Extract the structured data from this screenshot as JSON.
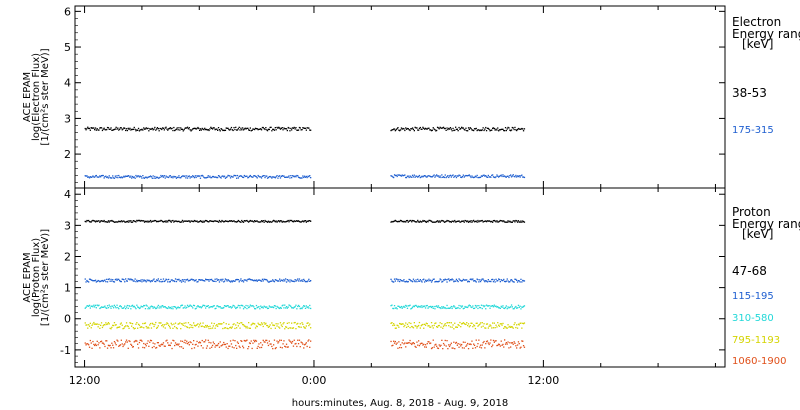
{
  "chart_data": [
    {
      "type": "scatter",
      "panel": "electron",
      "ylabel_lines": [
        "ACE EPAM",
        "log(Electron Flux)",
        "[1/(cm²s ster MeV)]"
      ],
      "yticks": [
        2,
        3,
        4,
        5,
        6
      ],
      "ylim": [
        1.05,
        6.15
      ],
      "legend_title": [
        "Electron",
        "Energy range",
        "[keV]"
      ],
      "series": [
        {
          "name": "38-53",
          "color": "#000000",
          "values_segment_1": 2.72,
          "values_segment_2": 2.72,
          "jitter": 0.05
        },
        {
          "name": "175-315",
          "color": "#1f5fd0",
          "values_segment_1": 1.38,
          "values_segment_2": 1.4,
          "jitter": 0.04
        }
      ]
    },
    {
      "type": "scatter",
      "panel": "proton",
      "ylabel_lines": [
        "ACE EPAM",
        "log(Proton Flux)",
        "[1/(cm²s ster MeV)]"
      ],
      "yticks": [
        -1,
        0,
        1,
        2,
        3,
        4
      ],
      "ylim": [
        -1.55,
        4.2
      ],
      "legend_title": [
        "Proton",
        "Energy range",
        "[keV]"
      ],
      "series": [
        {
          "name": "47-68",
          "color": "#000000",
          "values_segment_1": 3.15,
          "values_segment_2": 3.15,
          "jitter": 0.03
        },
        {
          "name": "115-195",
          "color": "#1f5fd0",
          "values_segment_1": 1.25,
          "values_segment_2": 1.25,
          "jitter": 0.05
        },
        {
          "name": "310-580",
          "color": "#22d8d8",
          "values_segment_1": 0.4,
          "values_segment_2": 0.4,
          "jitter": 0.06
        },
        {
          "name": "795-1193",
          "color": "#d4d400",
          "values_segment_1": -0.2,
          "values_segment_2": -0.2,
          "jitter": 0.1
        },
        {
          "name": "1060-1900",
          "color": "#e0501a",
          "values_segment_1": -0.8,
          "values_segment_2": -0.8,
          "jitter": 0.14
        }
      ]
    }
  ],
  "time_axis": {
    "range_hours": [
      11.5,
      45.5
    ],
    "data_segments_hours": [
      [
        12.0,
        23.8
      ],
      [
        28.0,
        35.0
      ]
    ],
    "major_tick_labels": [
      {
        "hour": 12,
        "label": "12:00"
      },
      {
        "hour": 24,
        "label": "0:00"
      },
      {
        "hour": 36,
        "label": "12:00"
      }
    ],
    "minor_tick_step_hours": 3,
    "xlabel": "hours:minutes, Aug.  8, 2018 - Aug.  9, 2018"
  }
}
